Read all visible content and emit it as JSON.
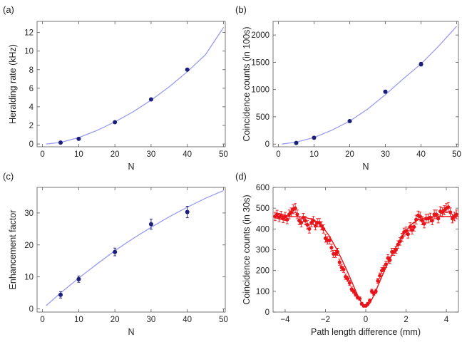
{
  "colors": {
    "fit_blue": "#9a9cf0",
    "point_navy": "#1b1f7a",
    "red": "#e8141a",
    "axis": "#555555"
  },
  "chart_data": [
    {
      "panel_label": "(a)",
      "type": "scatter",
      "xlabel": "N",
      "ylabel": "Heralding rate (kHz)",
      "xlim": [
        -1.5,
        50.5
      ],
      "ylim": [
        -0.3,
        13.2
      ],
      "xticks": [
        0,
        10,
        20,
        30,
        40,
        50
      ],
      "yticks": [
        0,
        2,
        4,
        6,
        8,
        10,
        12
      ],
      "grid": false,
      "series": [
        {
          "kind": "points",
          "x": [
            5,
            10,
            20,
            30,
            40
          ],
          "y": [
            0.15,
            0.55,
            2.35,
            4.8,
            8.0
          ],
          "err": [
            0.05,
            0.06,
            0.08,
            0.1,
            0.12
          ]
        },
        {
          "kind": "fit",
          "x": [
            1,
            5,
            10,
            15,
            20,
            25,
            30,
            35,
            40,
            45,
            50
          ],
          "y": [
            0.0,
            0.17,
            0.69,
            1.45,
            2.38,
            3.45,
            4.72,
            6.15,
            7.78,
            9.6,
            12.55
          ]
        }
      ]
    },
    {
      "panel_label": "(b)",
      "type": "scatter",
      "xlabel": "N",
      "ylabel": "Coincidence counts (in 100s)",
      "xlim": [
        -1.5,
        50.5
      ],
      "ylim": [
        -50,
        2250
      ],
      "xticks": [
        0,
        10,
        20,
        30,
        40,
        50
      ],
      "yticks": [
        0,
        500,
        1000,
        1500,
        2000
      ],
      "grid": false,
      "series": [
        {
          "kind": "points",
          "x": [
            5,
            10,
            20,
            30,
            40
          ],
          "y": [
            20,
            115,
            420,
            960,
            1465
          ],
          "err": [
            10,
            15,
            20,
            30,
            35
          ]
        },
        {
          "kind": "fit",
          "x": [
            1,
            5,
            10,
            15,
            20,
            25,
            30,
            35,
            40,
            45,
            50
          ],
          "y": [
            0,
            35,
            120,
            255,
            420,
            640,
            905,
            1195,
            1470,
            1800,
            2160
          ]
        }
      ]
    },
    {
      "panel_label": "(c)",
      "type": "scatter",
      "xlabel": "N",
      "ylabel": "Enhancement factor",
      "xlim": [
        -1.5,
        50.5
      ],
      "ylim": [
        -1,
        38
      ],
      "xticks": [
        0,
        10,
        20,
        30,
        40,
        50
      ],
      "yticks": [
        0,
        10,
        20,
        30
      ],
      "grid": false,
      "series": [
        {
          "kind": "points",
          "x": [
            5,
            10,
            20,
            30,
            40
          ],
          "y": [
            4.4,
            9.3,
            17.8,
            26.5,
            30.3
          ],
          "err": [
            1.0,
            1.0,
            1.2,
            1.6,
            1.8
          ]
        },
        {
          "kind": "fit",
          "x": [
            1,
            5,
            10,
            15,
            20,
            25,
            30,
            35,
            40,
            45,
            50
          ],
          "y": [
            1.0,
            5.0,
            9.6,
            14.0,
            18.2,
            22.0,
            25.5,
            28.8,
            31.8,
            34.6,
            37.0
          ]
        }
      ]
    },
    {
      "panel_label": "(d)",
      "type": "scatter",
      "xlabel": "Path length difference (mm)",
      "ylabel": "Coincidence counts (in 30s)",
      "xlim": [
        -4.6,
        4.6
      ],
      "ylim": [
        0,
        600
      ],
      "xticks": [
        -4,
        -2,
        0,
        2,
        4
      ],
      "yticks": [
        0,
        100,
        200,
        300,
        400,
        500,
        600
      ],
      "grid": false,
      "series": [
        {
          "kind": "points",
          "x": [
            -4.5,
            -4.4,
            -4.3,
            -4.2,
            -4.1,
            -4.0,
            -3.9,
            -3.8,
            -3.7,
            -3.6,
            -3.5,
            -3.4,
            -3.3,
            -3.2,
            -3.1,
            -3.0,
            -2.9,
            -2.8,
            -2.7,
            -2.6,
            -2.5,
            -2.4,
            -2.3,
            -2.2,
            -2.1,
            -2.0,
            -1.9,
            -1.8,
            -1.7,
            -1.6,
            -1.5,
            -1.4,
            -1.3,
            -1.2,
            -1.1,
            -1.0,
            -0.9,
            -0.8,
            -0.7,
            -0.6,
            -0.5,
            -0.4,
            -0.3,
            -0.2,
            -0.1,
            0.0,
            0.1,
            0.2,
            0.3,
            0.4,
            0.5,
            0.6,
            0.7,
            0.8,
            0.9,
            1.0,
            1.1,
            1.2,
            1.3,
            1.4,
            1.5,
            1.6,
            1.7,
            1.8,
            1.9,
            2.0,
            2.1,
            2.2,
            2.3,
            2.4,
            2.5,
            2.6,
            2.7,
            2.8,
            2.9,
            3.0,
            3.1,
            3.2,
            3.3,
            3.4,
            3.5,
            3.6,
            3.7,
            3.8,
            3.9,
            4.0,
            4.1,
            4.2,
            4.3,
            4.4,
            4.5
          ],
          "y": [
            460,
            470,
            455,
            465,
            450,
            460,
            445,
            470,
            480,
            495,
            500,
            470,
            440,
            430,
            455,
            440,
            420,
            400,
            430,
            440,
            415,
            430,
            430,
            415,
            400,
            355,
            345,
            345,
            310,
            280,
            280,
            290,
            240,
            215,
            205,
            170,
            160,
            140,
            110,
            100,
            85,
            70,
            65,
            40,
            30,
            30,
            40,
            55,
            100,
            90,
            100,
            150,
            175,
            200,
            210,
            230,
            260,
            250,
            290,
            290,
            300,
            325,
            340,
            360,
            385,
            390,
            375,
            410,
            395,
            410,
            445,
            465,
            460,
            440,
            425,
            450,
            450,
            455,
            440,
            470,
            470,
            450,
            485,
            480,
            490,
            500,
            505,
            480,
            450,
            460,
            470
          ],
          "err": [
            20,
            20,
            20,
            20,
            20,
            20,
            20,
            21,
            21,
            22,
            22,
            21,
            20,
            20,
            20,
            20,
            20,
            20,
            20,
            20,
            20,
            20,
            20,
            20,
            20,
            19,
            18,
            18,
            17,
            17,
            17,
            17,
            15,
            15,
            14,
            13,
            13,
            12,
            11,
            10,
            9,
            8,
            8,
            7,
            6,
            6,
            7,
            8,
            10,
            9,
            10,
            12,
            13,
            14,
            14,
            15,
            16,
            16,
            17,
            17,
            17,
            18,
            18,
            19,
            19,
            19,
            19,
            20,
            20,
            20,
            21,
            21,
            21,
            20,
            20,
            21,
            21,
            21,
            20,
            21,
            21,
            21,
            22,
            22,
            22,
            22,
            22,
            21,
            21,
            21,
            21
          ]
        },
        {
          "kind": "fit",
          "x": [
            -4.6,
            -4.0,
            -3.5,
            -3.0,
            -2.6,
            -2.3,
            -2.0,
            -1.8,
            -1.6,
            -1.4,
            -1.2,
            -1.0,
            -0.8,
            -0.6,
            -0.4,
            -0.2,
            -0.1,
            0.0,
            0.1,
            0.2,
            0.4,
            0.6,
            0.8,
            1.0,
            1.2,
            1.4,
            1.6,
            1.8,
            2.0,
            2.3,
            2.6,
            3.0,
            3.5,
            4.0,
            4.6
          ],
          "y": [
            460,
            460,
            459,
            455,
            445,
            425,
            392,
            365,
            330,
            295,
            255,
            215,
            170,
            125,
            80,
            42,
            30,
            25,
            30,
            42,
            80,
            125,
            170,
            215,
            255,
            295,
            330,
            365,
            392,
            425,
            445,
            455,
            459,
            460,
            460
          ]
        }
      ]
    }
  ]
}
